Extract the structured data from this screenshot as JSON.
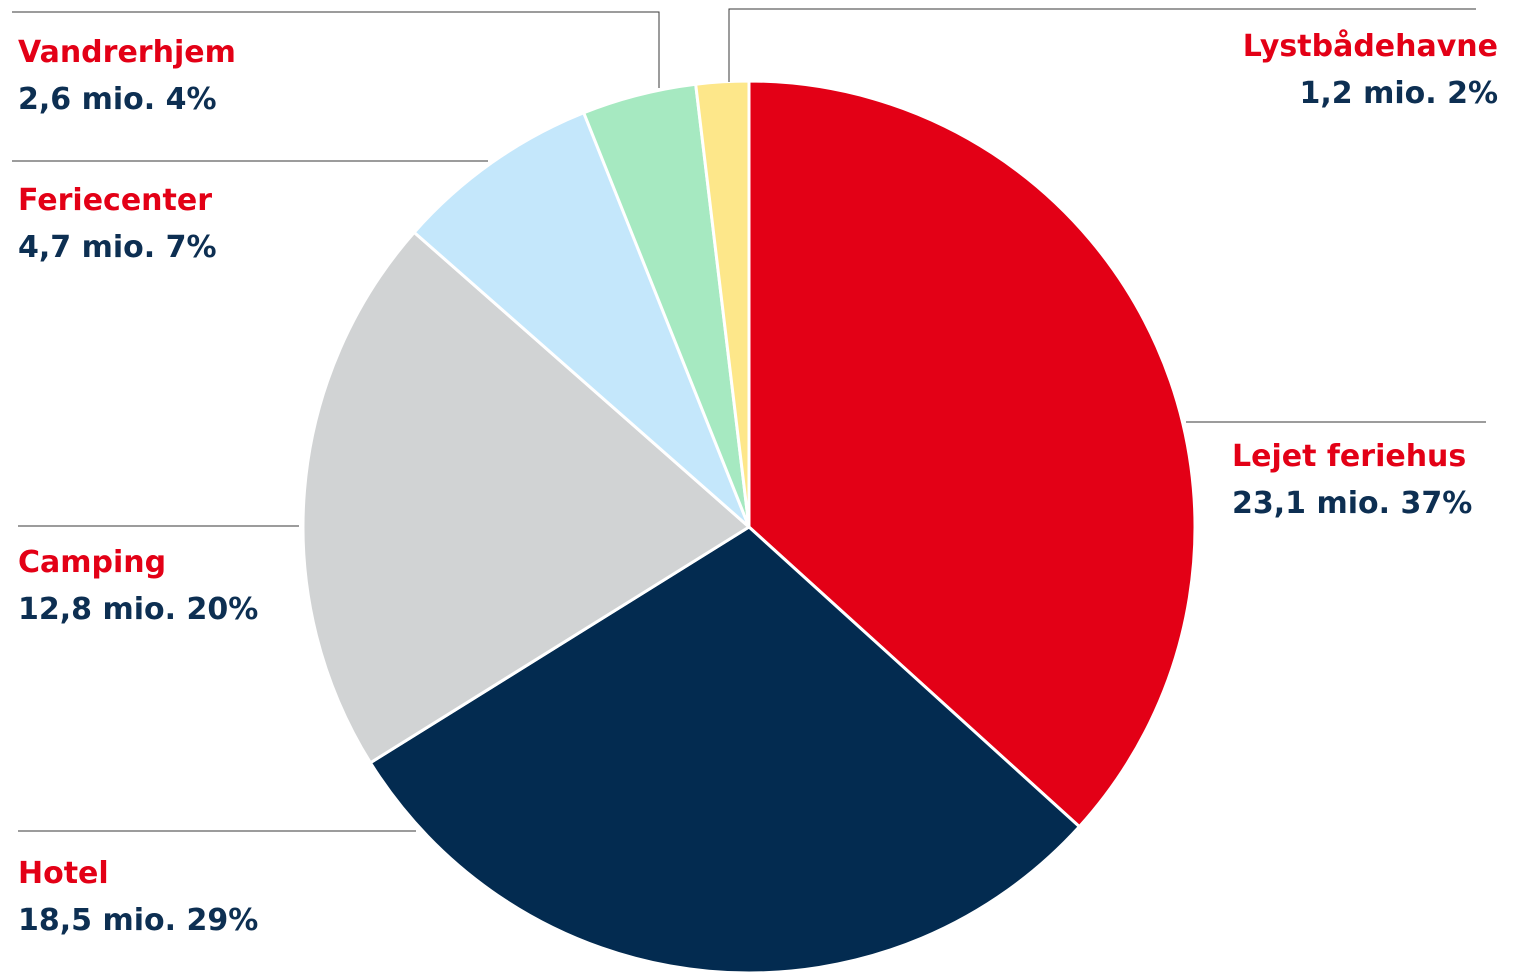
{
  "colors": {
    "label_name": "#e30016",
    "label_value": "#0d2f52"
  },
  "chart_data": {
    "type": "pie",
    "title": "",
    "slices": [
      {
        "name": "Lejet feriehus",
        "value": 23.1,
        "percent": 37,
        "value_text": "23,1 mio. 37%",
        "color": "#e30016"
      },
      {
        "name": "Hotel",
        "value": 18.5,
        "percent": 29,
        "value_text": "18,5 mio. 29%",
        "color": "#032b50"
      },
      {
        "name": "Camping",
        "value": 12.8,
        "percent": 20,
        "value_text": "12,8 mio. 20%",
        "color": "#d1d3d4"
      },
      {
        "name": "Feriecenter",
        "value": 4.7,
        "percent": 7,
        "value_text": "4,7 mio. 7%",
        "color": "#c4e7fb"
      },
      {
        "name": "Vandrerhjem",
        "value": 2.6,
        "percent": 4,
        "value_text": "2,6 mio. 4%",
        "color": "#a6e9c1"
      },
      {
        "name": "Lystbådehavne",
        "value": 1.2,
        "percent": 2,
        "value_text": "1,2 mio. 2%",
        "color": "#fde78a"
      }
    ],
    "start_angle": "12 o'clock",
    "direction": "clockwise",
    "legend": "none"
  }
}
